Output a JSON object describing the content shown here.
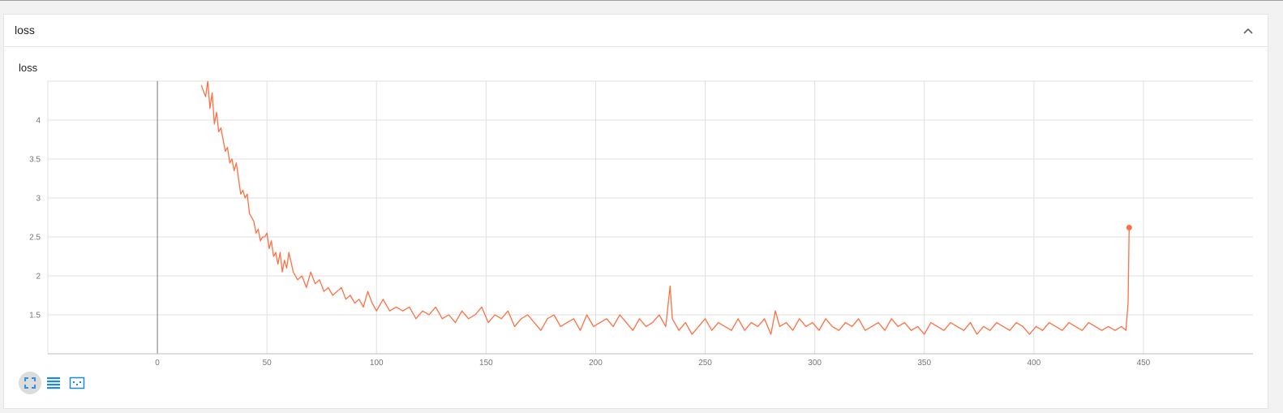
{
  "panel": {
    "title": "loss"
  },
  "icons": {
    "collapse": "chevron-up-icon",
    "fit": "fit-domain-icon",
    "log_scale": "log-scale-icon",
    "data_selection": "data-selection-icon"
  },
  "colors": {
    "series": "#ff7043",
    "grid": "#e0e0e0",
    "zero_line": "#757575",
    "toolbar_blue": "#1e88e5"
  },
  "chart_data": {
    "type": "line",
    "title": "loss",
    "xlabel": "",
    "ylabel": "",
    "xlim": [
      -50,
      500
    ],
    "ylim": [
      1.0,
      4.5
    ],
    "x_ticks": [
      0,
      50,
      100,
      150,
      200,
      250,
      300,
      350,
      400,
      450
    ],
    "y_ticks": [
      1.5,
      2,
      2.5,
      3,
      3.5,
      4
    ],
    "grid": true,
    "series": [
      {
        "name": "",
        "points": [
          [
            20,
            4.45
          ],
          [
            22,
            4.3
          ],
          [
            23,
            4.5
          ],
          [
            24,
            4.15
          ],
          [
            25,
            4.35
          ],
          [
            26,
            3.95
          ],
          [
            27,
            4.1
          ],
          [
            28,
            3.85
          ],
          [
            29,
            3.9
          ],
          [
            30,
            3.75
          ],
          [
            31,
            3.6
          ],
          [
            32,
            3.65
          ],
          [
            33,
            3.45
          ],
          [
            34,
            3.5
          ],
          [
            35,
            3.35
          ],
          [
            36,
            3.45
          ],
          [
            37,
            3.25
          ],
          [
            38,
            3.05
          ],
          [
            39,
            3.1
          ],
          [
            40,
            3.0
          ],
          [
            41,
            3.05
          ],
          [
            42,
            2.8
          ],
          [
            43,
            2.75
          ],
          [
            44,
            2.7
          ],
          [
            45,
            2.55
          ],
          [
            46,
            2.6
          ],
          [
            47,
            2.45
          ],
          [
            48,
            2.5
          ],
          [
            49,
            2.5
          ],
          [
            50,
            2.55
          ],
          [
            51,
            2.35
          ],
          [
            52,
            2.45
          ],
          [
            53,
            2.25
          ],
          [
            54,
            2.3
          ],
          [
            55,
            2.15
          ],
          [
            56,
            2.3
          ],
          [
            57,
            2.05
          ],
          [
            58,
            2.2
          ],
          [
            59,
            2.1
          ],
          [
            60,
            2.3
          ],
          [
            62,
            2.05
          ],
          [
            64,
            1.95
          ],
          [
            66,
            2.0
          ],
          [
            68,
            1.85
          ],
          [
            70,
            2.05
          ],
          [
            72,
            1.9
          ],
          [
            74,
            1.95
          ],
          [
            76,
            1.8
          ],
          [
            78,
            1.85
          ],
          [
            80,
            1.75
          ],
          [
            82,
            1.8
          ],
          [
            84,
            1.85
          ],
          [
            86,
            1.7
          ],
          [
            88,
            1.75
          ],
          [
            90,
            1.65
          ],
          [
            92,
            1.7
          ],
          [
            94,
            1.6
          ],
          [
            96,
            1.8
          ],
          [
            98,
            1.65
          ],
          [
            100,
            1.55
          ],
          [
            103,
            1.7
          ],
          [
            106,
            1.55
          ],
          [
            109,
            1.6
          ],
          [
            112,
            1.55
          ],
          [
            115,
            1.6
          ],
          [
            118,
            1.45
          ],
          [
            121,
            1.55
          ],
          [
            124,
            1.5
          ],
          [
            127,
            1.6
          ],
          [
            130,
            1.45
          ],
          [
            133,
            1.5
          ],
          [
            136,
            1.4
          ],
          [
            139,
            1.55
          ],
          [
            142,
            1.45
          ],
          [
            145,
            1.5
          ],
          [
            148,
            1.6
          ],
          [
            151,
            1.4
          ],
          [
            154,
            1.5
          ],
          [
            157,
            1.45
          ],
          [
            160,
            1.55
          ],
          [
            163,
            1.35
          ],
          [
            166,
            1.45
          ],
          [
            169,
            1.5
          ],
          [
            172,
            1.4
          ],
          [
            175,
            1.3
          ],
          [
            178,
            1.45
          ],
          [
            181,
            1.5
          ],
          [
            184,
            1.35
          ],
          [
            187,
            1.4
          ],
          [
            190,
            1.45
          ],
          [
            193,
            1.3
          ],
          [
            196,
            1.5
          ],
          [
            199,
            1.35
          ],
          [
            202,
            1.4
          ],
          [
            205,
            1.45
          ],
          [
            208,
            1.35
          ],
          [
            211,
            1.5
          ],
          [
            214,
            1.4
          ],
          [
            217,
            1.3
          ],
          [
            220,
            1.45
          ],
          [
            223,
            1.35
          ],
          [
            226,
            1.4
          ],
          [
            229,
            1.5
          ],
          [
            232,
            1.35
          ],
          [
            234,
            1.87
          ],
          [
            235,
            1.45
          ],
          [
            238,
            1.3
          ],
          [
            241,
            1.4
          ],
          [
            244,
            1.25
          ],
          [
            247,
            1.35
          ],
          [
            250,
            1.45
          ],
          [
            253,
            1.3
          ],
          [
            256,
            1.4
          ],
          [
            259,
            1.35
          ],
          [
            262,
            1.3
          ],
          [
            265,
            1.45
          ],
          [
            268,
            1.3
          ],
          [
            271,
            1.4
          ],
          [
            274,
            1.35
          ],
          [
            277,
            1.45
          ],
          [
            280,
            1.25
          ],
          [
            282,
            1.55
          ],
          [
            284,
            1.35
          ],
          [
            287,
            1.4
          ],
          [
            290,
            1.3
          ],
          [
            293,
            1.45
          ],
          [
            296,
            1.35
          ],
          [
            299,
            1.4
          ],
          [
            302,
            1.3
          ],
          [
            305,
            1.45
          ],
          [
            308,
            1.35
          ],
          [
            311,
            1.3
          ],
          [
            314,
            1.4
          ],
          [
            317,
            1.35
          ],
          [
            320,
            1.45
          ],
          [
            323,
            1.3
          ],
          [
            326,
            1.35
          ],
          [
            329,
            1.4
          ],
          [
            332,
            1.3
          ],
          [
            335,
            1.45
          ],
          [
            338,
            1.35
          ],
          [
            341,
            1.4
          ],
          [
            344,
            1.3
          ],
          [
            347,
            1.35
          ],
          [
            350,
            1.25
          ],
          [
            353,
            1.4
          ],
          [
            356,
            1.35
          ],
          [
            359,
            1.3
          ],
          [
            362,
            1.4
          ],
          [
            365,
            1.35
          ],
          [
            368,
            1.3
          ],
          [
            371,
            1.4
          ],
          [
            374,
            1.25
          ],
          [
            377,
            1.35
          ],
          [
            380,
            1.3
          ],
          [
            383,
            1.4
          ],
          [
            386,
            1.35
          ],
          [
            389,
            1.3
          ],
          [
            392,
            1.4
          ],
          [
            395,
            1.35
          ],
          [
            398,
            1.25
          ],
          [
            401,
            1.35
          ],
          [
            404,
            1.3
          ],
          [
            407,
            1.4
          ],
          [
            410,
            1.35
          ],
          [
            413,
            1.3
          ],
          [
            416,
            1.4
          ],
          [
            419,
            1.35
          ],
          [
            422,
            1.3
          ],
          [
            425,
            1.4
          ],
          [
            428,
            1.35
          ],
          [
            431,
            1.3
          ],
          [
            434,
            1.35
          ],
          [
            437,
            1.3
          ],
          [
            440,
            1.35
          ],
          [
            442,
            1.3
          ],
          [
            443,
            1.65
          ],
          [
            443.5,
            2.62
          ]
        ]
      }
    ]
  }
}
